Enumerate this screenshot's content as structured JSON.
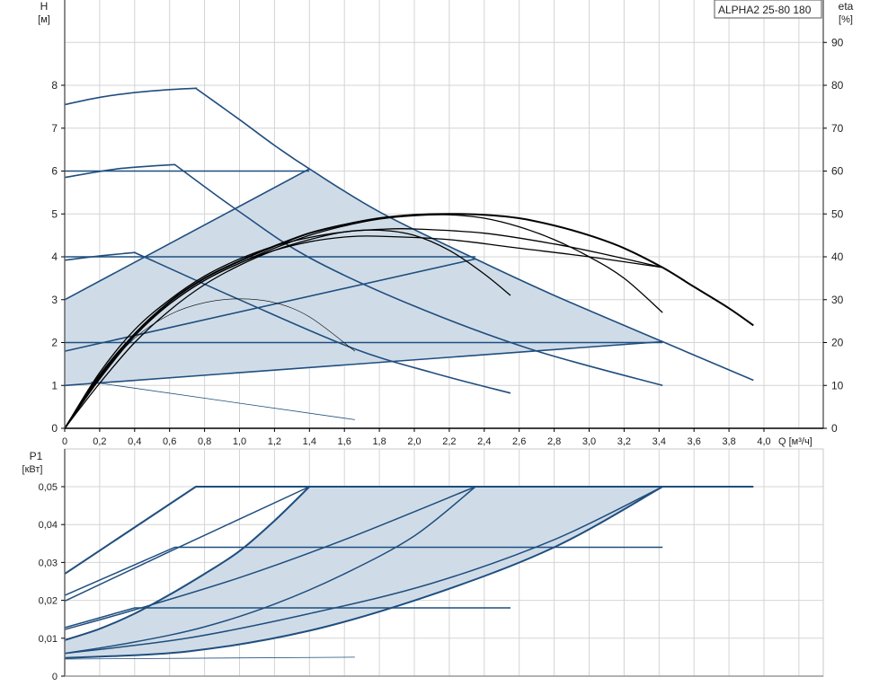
{
  "chart_data": [
    {
      "type": "line",
      "title": "ALPHA2 25-80 180",
      "ylabel": "H",
      "yunit": "[м]",
      "y2label": "eta",
      "y2unit": "[%]",
      "xlabel": "Q [м³/ч]",
      "xlim": [
        0,
        4.34
      ],
      "ylim": [
        0,
        10
      ],
      "y2lim": [
        0,
        100
      ],
      "xticks": [
        "0",
        "0,2",
        "0,4",
        "0,6",
        "0,8",
        "1,0",
        "1,2",
        "1,4",
        "1,6",
        "1,8",
        "2,0",
        "2,2",
        "2,4",
        "2,6",
        "2,8",
        "3,0",
        "3,2",
        "3,4",
        "3,6",
        "3,8",
        "4,0"
      ],
      "yticks": [
        "0",
        "1",
        "2",
        "3",
        "4",
        "5",
        "6",
        "7",
        "8"
      ],
      "y2ticks": [
        "0",
        "10",
        "20",
        "30",
        "40",
        "50",
        "60",
        "70",
        "80",
        "90"
      ],
      "grid": true,
      "colors": {
        "head": "#1f4e7e",
        "eta": "#000000",
        "fill": "#cfdce8"
      },
      "head_series": [
        {
          "points": [
            [
              0,
              7.55
            ],
            [
              0.2,
              7.72
            ],
            [
              0.4,
              7.83
            ],
            [
              0.6,
              7.9
            ],
            [
              0.75,
              7.93
            ],
            [
              1.0,
              7.2
            ],
            [
              1.2,
              6.6
            ],
            [
              1.4,
              6.05
            ],
            [
              1.8,
              5.05
            ],
            [
              2.35,
              3.95
            ],
            [
              2.8,
              3.1
            ],
            [
              3.42,
              2.02
            ],
            [
              3.94,
              1.12
            ]
          ]
        },
        {
          "points": [
            [
              0,
              5.85
            ],
            [
              0.3,
              6.05
            ],
            [
              0.63,
              6.15
            ],
            [
              1.0,
              5.05
            ],
            [
              1.4,
              3.98
            ],
            [
              2.0,
              2.85
            ],
            [
              2.67,
              1.84
            ],
            [
              3.42,
              1.0
            ]
          ]
        },
        {
          "points": [
            [
              0,
              3.92
            ],
            [
              0.2,
              4.02
            ],
            [
              0.4,
              4.1
            ],
            [
              1.0,
              3.0
            ],
            [
              1.64,
              1.88
            ],
            [
              2.1,
              1.3
            ],
            [
              2.55,
              0.82
            ]
          ]
        },
        {
          "points": [
            [
              0.15,
              1.08
            ],
            [
              1.66,
              0.2
            ]
          ],
          "thin": true
        },
        {
          "points": [
            [
              0,
              6.0
            ],
            [
              1.4,
              6.0
            ]
          ]
        },
        {
          "points": [
            [
              0,
              4.0
            ],
            [
              2.35,
              4.0
            ]
          ]
        },
        {
          "points": [
            [
              0,
              2.0
            ],
            [
              3.42,
              2.0
            ]
          ]
        },
        {
          "points": [
            [
              0,
              3.0
            ],
            [
              1.4,
              6.05
            ]
          ]
        },
        {
          "points": [
            [
              0,
              1.8
            ],
            [
              2.35,
              3.95
            ]
          ]
        },
        {
          "points": [
            [
              0,
              1.0
            ],
            [
              3.42,
              2.02
            ]
          ]
        }
      ],
      "eta_series": [
        {
          "points": [
            [
              0,
              0
            ],
            [
              0.2,
              12
            ],
            [
              0.4,
              22
            ],
            [
              0.6,
              29.5
            ],
            [
              0.8,
              35
            ],
            [
              1.0,
              39
            ],
            [
              1.2,
              42.5
            ],
            [
              1.4,
              45.5
            ],
            [
              1.6,
              47.5
            ],
            [
              1.8,
              49
            ],
            [
              2.0,
              49.8
            ],
            [
              2.2,
              50
            ],
            [
              2.4,
              49.8
            ],
            [
              2.6,
              49
            ],
            [
              2.8,
              47.3
            ],
            [
              3.0,
              45
            ],
            [
              3.2,
              42
            ],
            [
              3.42,
              37.5
            ],
            [
              3.6,
              33
            ],
            [
              3.8,
              28
            ],
            [
              3.94,
              24
            ]
          ],
          "thick": true
        },
        {
          "points": [
            [
              0,
              0
            ],
            [
              0.2,
              11.5
            ],
            [
              0.4,
              21.5
            ],
            [
              0.6,
              29
            ],
            [
              0.8,
              34.5
            ],
            [
              1.0,
              38.5
            ],
            [
              1.2,
              42
            ],
            [
              1.4,
              45
            ],
            [
              1.6,
              47.2
            ],
            [
              1.8,
              48.8
            ],
            [
              2.0,
              49.6
            ],
            [
              2.2,
              49.8
            ],
            [
              2.4,
              49
            ],
            [
              2.6,
              47
            ],
            [
              2.8,
              44
            ],
            [
              3.0,
              40
            ],
            [
              3.2,
              35
            ],
            [
              3.42,
              27
            ]
          ]
        },
        {
          "points": [
            [
              0,
              0
            ],
            [
              0.2,
              13
            ],
            [
              0.4,
              23
            ],
            [
              0.6,
              30
            ],
            [
              0.8,
              35.5
            ],
            [
              1.0,
              39.5
            ],
            [
              1.2,
              42.5
            ],
            [
              1.4,
              44.5
            ],
            [
              1.6,
              45.8
            ],
            [
              1.8,
              46.4
            ],
            [
              2.0,
              46.5
            ],
            [
              2.4,
              45.5
            ],
            [
              2.8,
              43
            ],
            [
              3.1,
              40.5
            ],
            [
              3.42,
              37.5
            ]
          ]
        },
        {
          "points": [
            [
              0,
              0
            ],
            [
              0.2,
              12.5
            ],
            [
              0.4,
              22
            ],
            [
              0.6,
              29
            ],
            [
              0.8,
              34.5
            ],
            [
              1.0,
              38.5
            ],
            [
              1.2,
              41.5
            ],
            [
              1.4,
              43.5
            ],
            [
              1.6,
              44.6
            ],
            [
              1.8,
              44.8
            ],
            [
              2.2,
              44
            ],
            [
              2.6,
              42
            ],
            [
              3.0,
              40
            ],
            [
              3.42,
              37.5
            ]
          ]
        },
        {
          "points": [
            [
              0,
              0
            ],
            [
              0.2,
              10.5
            ],
            [
              0.4,
              20
            ],
            [
              0.6,
              27.5
            ],
            [
              0.8,
              33.5
            ],
            [
              1.0,
              38
            ],
            [
              1.2,
              41.5
            ],
            [
              1.4,
              44
            ],
            [
              1.6,
              45.8
            ],
            [
              1.8,
              46.2
            ],
            [
              2.0,
              45
            ],
            [
              2.2,
              41.5
            ],
            [
              2.4,
              36
            ],
            [
              2.55,
              31
            ]
          ]
        },
        {
          "points": [
            [
              0,
              0
            ],
            [
              0.2,
              12
            ],
            [
              0.4,
              21
            ],
            [
              0.6,
              26.5
            ],
            [
              0.8,
              29.3
            ],
            [
              1.0,
              30.2
            ],
            [
              1.2,
              29.3
            ],
            [
              1.4,
              26
            ],
            [
              1.66,
              18
            ]
          ],
          "thin": true
        }
      ]
    },
    {
      "type": "line",
      "ylabel": "P1",
      "yunit": "[кВт]",
      "xlim": [
        0,
        4.34
      ],
      "ylim": [
        0,
        0.06
      ],
      "yticks": [
        "0",
        "0,01",
        "0,02",
        "0,03",
        "0,04",
        "0,05"
      ],
      "grid": true,
      "colors": {
        "power": "#1f4e7e",
        "fill": "#cfdce8"
      },
      "power_series": [
        {
          "points": [
            [
              0,
              0.027
            ],
            [
              0.75,
              0.05
            ],
            [
              3.94,
              0.05
            ]
          ],
          "thick": true
        },
        {
          "points": [
            [
              0,
              0.0213
            ],
            [
              0.63,
              0.034
            ],
            [
              3.42,
              0.034
            ]
          ]
        },
        {
          "points": [
            [
              0,
              0.0198
            ],
            [
              0.63,
              0.0335
            ],
            [
              1.4,
              0.05
            ]
          ]
        },
        {
          "points": [
            [
              0,
              0.0128
            ],
            [
              0.4,
              0.018
            ],
            [
              2.55,
              0.018
            ]
          ]
        },
        {
          "points": [
            [
              0,
              0.0123
            ],
            [
              0.4,
              0.0175
            ],
            [
              1.0,
              0.026
            ],
            [
              1.6,
              0.036
            ],
            [
              2.35,
              0.05
            ]
          ]
        },
        {
          "points": [
            [
              0,
              0.0095
            ],
            [
              0.2,
              0.0125
            ],
            [
              0.4,
              0.0165
            ],
            [
              0.6,
              0.0215
            ],
            [
              0.8,
              0.027
            ],
            [
              1.0,
              0.033
            ],
            [
              1.2,
              0.041
            ],
            [
              1.4,
              0.05
            ]
          ],
          "thick": true
        },
        {
          "points": [
            [
              0,
              0.006
            ],
            [
              0.4,
              0.009
            ],
            [
              0.8,
              0.013
            ],
            [
              1.2,
              0.019
            ],
            [
              1.6,
              0.027
            ],
            [
              2.0,
              0.037
            ],
            [
              2.35,
              0.05
            ]
          ]
        },
        {
          "points": [
            [
              0,
              0.006
            ],
            [
              0.7,
              0.01
            ],
            [
              1.4,
              0.0165
            ],
            [
              2.1,
              0.0245
            ],
            [
              2.8,
              0.036
            ],
            [
              3.42,
              0.05
            ]
          ]
        },
        {
          "points": [
            [
              0,
              0.0048
            ],
            [
              0.7,
              0.0065
            ],
            [
              1.4,
              0.012
            ],
            [
              2.1,
              0.0215
            ],
            [
              2.8,
              0.034
            ],
            [
              3.42,
              0.05
            ]
          ],
          "thick": true
        },
        {
          "points": [
            [
              0,
              0.0045
            ],
            [
              1.66,
              0.005
            ]
          ],
          "thin": true
        }
      ]
    }
  ]
}
